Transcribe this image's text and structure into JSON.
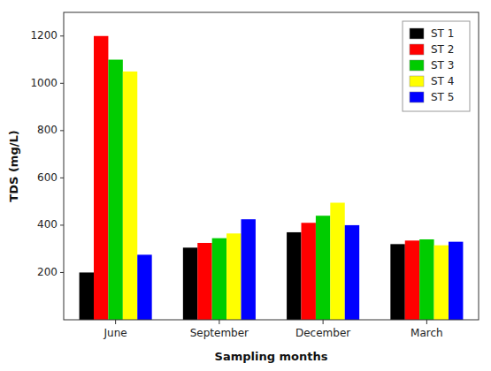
{
  "chart_data": {
    "type": "bar",
    "categories": [
      "June",
      "September",
      "December",
      "March"
    ],
    "series": [
      {
        "name": "ST 1",
        "color": "#000000",
        "values": [
          200,
          305,
          370,
          320
        ]
      },
      {
        "name": "ST 2",
        "color": "#ff0000",
        "values": [
          1200,
          325,
          410,
          335
        ]
      },
      {
        "name": "ST 3",
        "color": "#00cc00",
        "values": [
          1100,
          345,
          440,
          340
        ]
      },
      {
        "name": "ST 4",
        "color": "#ffff00",
        "values": [
          1050,
          365,
          495,
          315
        ]
      },
      {
        "name": "ST 5",
        "color": "#0000ff",
        "values": [
          275,
          425,
          400,
          330
        ]
      }
    ],
    "xlabel": "Sampling months",
    "ylabel": "TDS (mg/L)",
    "ylim": [
      0,
      1300
    ],
    "yticks": [
      200,
      400,
      600,
      800,
      1000,
      1200
    ],
    "grid": false,
    "legend": "upper right"
  }
}
